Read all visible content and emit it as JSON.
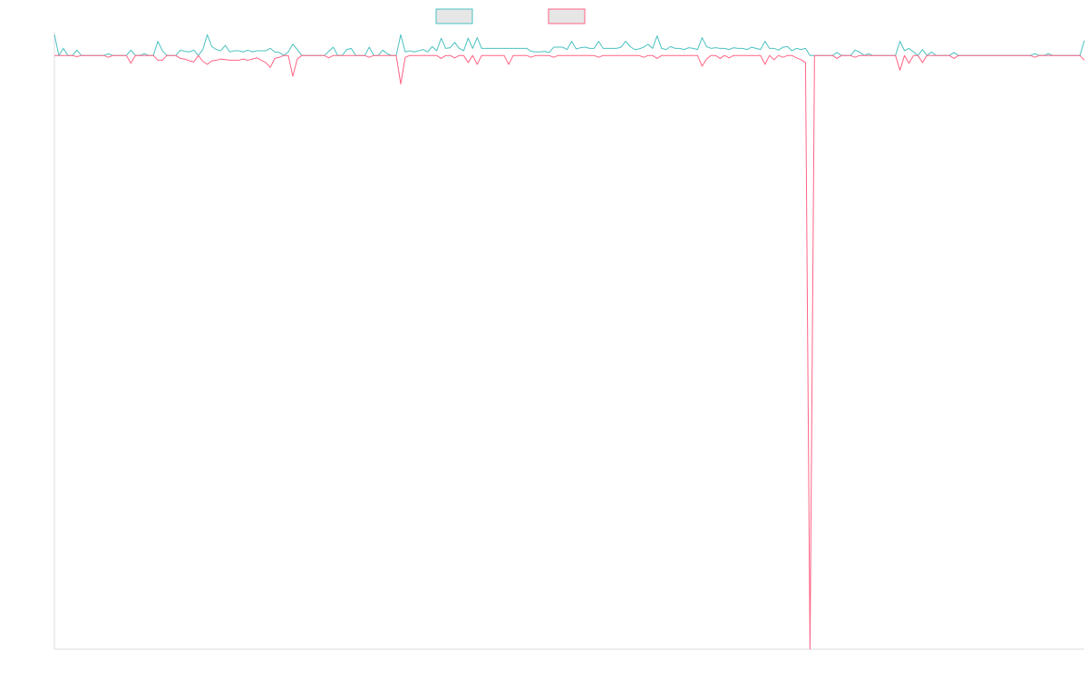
{
  "chart_data": {
    "type": "line",
    "title": "",
    "xlabel": "",
    "ylabel": "",
    "grid": false,
    "legend_position": "top-center",
    "ylim": [
      -100,
      4
    ],
    "x_count": 230,
    "baseline": 0,
    "series": [
      {
        "name": "",
        "color": "#4bc0c0",
        "legend_fill": "#e6e6e6",
        "spikes": [
          [
            0,
            3.5
          ],
          [
            2,
            1.2
          ],
          [
            5,
            0.9
          ],
          [
            12,
            0.3
          ],
          [
            17,
            0.9
          ],
          [
            20,
            0.3
          ],
          [
            23,
            2.4
          ],
          [
            24,
            0.8
          ],
          [
            28,
            0.9
          ],
          [
            29,
            0.7
          ],
          [
            30,
            0.6
          ],
          [
            31,
            0.9
          ],
          [
            33,
            1.0
          ],
          [
            34,
            3.5
          ],
          [
            35,
            1.5
          ],
          [
            36,
            1.0
          ],
          [
            37,
            0.8
          ],
          [
            38,
            1.7
          ],
          [
            39,
            0.6
          ],
          [
            40,
            0.8
          ],
          [
            41,
            0.8
          ],
          [
            42,
            0.6
          ],
          [
            43,
            0.9
          ],
          [
            44,
            0.6
          ],
          [
            45,
            0.8
          ],
          [
            46,
            0.8
          ],
          [
            47,
            0.8
          ],
          [
            48,
            1.2
          ],
          [
            49,
            0.6
          ],
          [
            50,
            0.5
          ],
          [
            52,
            0.6
          ],
          [
            53,
            1.9
          ],
          [
            54,
            1.0
          ],
          [
            61,
            0.7
          ],
          [
            62,
            1.4
          ],
          [
            65,
            1.0
          ],
          [
            66,
            1.2
          ],
          [
            70,
            1.4
          ],
          [
            73,
            0.9
          ],
          [
            74,
            0.3
          ],
          [
            77,
            3.5
          ],
          [
            78,
            0.6
          ],
          [
            79,
            0.8
          ],
          [
            80,
            0.6
          ],
          [
            81,
            0.8
          ],
          [
            82,
            1.0
          ],
          [
            83,
            0.6
          ],
          [
            84,
            1.5
          ],
          [
            85,
            0.8
          ],
          [
            86,
            2.9
          ],
          [
            87,
            1.2
          ],
          [
            88,
            1.3
          ],
          [
            89,
            2.2
          ],
          [
            90,
            1.2
          ],
          [
            91,
            0.8
          ],
          [
            92,
            2.9
          ],
          [
            93,
            1.2
          ],
          [
            94,
            3.0
          ],
          [
            95,
            1.2
          ],
          [
            96,
            1.2
          ],
          [
            97,
            1.2
          ],
          [
            98,
            1.2
          ],
          [
            99,
            1.2
          ],
          [
            100,
            1.2
          ],
          [
            101,
            1.2
          ],
          [
            102,
            1.2
          ],
          [
            103,
            1.2
          ],
          [
            104,
            1.2
          ],
          [
            105,
            1.2
          ],
          [
            106,
            0.7
          ],
          [
            107,
            0.6
          ],
          [
            108,
            0.6
          ],
          [
            109,
            0.7
          ],
          [
            110,
            0.5
          ],
          [
            111,
            1.4
          ],
          [
            112,
            1.4
          ],
          [
            113,
            1.4
          ],
          [
            114,
            1.0
          ],
          [
            115,
            2.4
          ],
          [
            116,
            1.1
          ],
          [
            117,
            1.3
          ],
          [
            118,
            1.4
          ],
          [
            119,
            1.2
          ],
          [
            120,
            1.2
          ],
          [
            121,
            2.4
          ],
          [
            122,
            1.2
          ],
          [
            123,
            1.2
          ],
          [
            124,
            1.2
          ],
          [
            125,
            1.2
          ],
          [
            126,
            1.4
          ],
          [
            127,
            2.4
          ],
          [
            128,
            1.5
          ],
          [
            129,
            1.0
          ],
          [
            130,
            1.1
          ],
          [
            131,
            1.4
          ],
          [
            132,
            1.9
          ],
          [
            133,
            1.2
          ],
          [
            134,
            3.3
          ],
          [
            135,
            1.2
          ],
          [
            136,
            1.0
          ],
          [
            137,
            1.5
          ],
          [
            138,
            1.2
          ],
          [
            139,
            1.2
          ],
          [
            140,
            1.0
          ],
          [
            141,
            1.3
          ],
          [
            142,
            1.2
          ],
          [
            143,
            1.0
          ],
          [
            144,
            3.0
          ],
          [
            145,
            1.5
          ],
          [
            146,
            1.2
          ],
          [
            147,
            1.3
          ],
          [
            148,
            1.2
          ],
          [
            149,
            1.2
          ],
          [
            150,
            1.0
          ],
          [
            151,
            1.3
          ],
          [
            152,
            1.2
          ],
          [
            153,
            1.2
          ],
          [
            154,
            1.0
          ],
          [
            155,
            1.4
          ],
          [
            156,
            1.2
          ],
          [
            157,
            1.0
          ],
          [
            158,
            2.4
          ],
          [
            159,
            1.2
          ],
          [
            160,
            1.2
          ],
          [
            161,
            0.9
          ],
          [
            162,
            1.4
          ],
          [
            163,
            1.5
          ],
          [
            164,
            0.8
          ],
          [
            165,
            1.2
          ],
          [
            166,
            1.0
          ],
          [
            167,
            1.2
          ],
          [
            174,
            0.5
          ],
          [
            178,
            0.9
          ],
          [
            179,
            0.6
          ],
          [
            181,
            0.3
          ],
          [
            188,
            2.4
          ],
          [
            189,
            0.8
          ],
          [
            190,
            1.2
          ],
          [
            191,
            0.6
          ],
          [
            193,
            1.0
          ],
          [
            195,
            0.6
          ],
          [
            200,
            0.5
          ],
          [
            218,
            0.3
          ],
          [
            221,
            0.3
          ],
          [
            229,
            2.5
          ]
        ]
      },
      {
        "name": "",
        "color": "#ff6384",
        "legend_fill": "#e6e6e6",
        "spikes": [
          [
            5,
            -0.2
          ],
          [
            12,
            -0.3
          ],
          [
            17,
            -1.3
          ],
          [
            23,
            -0.8
          ],
          [
            24,
            -0.8
          ],
          [
            28,
            -0.5
          ],
          [
            29,
            -0.6
          ],
          [
            30,
            -0.9
          ],
          [
            31,
            -1.1
          ],
          [
            33,
            -1.0
          ],
          [
            34,
            -1.5
          ],
          [
            35,
            -0.9
          ],
          [
            36,
            -0.8
          ],
          [
            37,
            -0.6
          ],
          [
            38,
            -0.7
          ],
          [
            39,
            -0.8
          ],
          [
            40,
            -0.8
          ],
          [
            41,
            -0.8
          ],
          [
            42,
            -0.6
          ],
          [
            43,
            -0.8
          ],
          [
            44,
            -0.6
          ],
          [
            45,
            -0.4
          ],
          [
            46,
            -0.8
          ],
          [
            47,
            -1.2
          ],
          [
            48,
            -2.0
          ],
          [
            49,
            -0.5
          ],
          [
            50,
            -0.3
          ],
          [
            53,
            -3.5
          ],
          [
            54,
            -0.6
          ],
          [
            61,
            -0.4
          ],
          [
            70,
            -0.3
          ],
          [
            77,
            -4.8
          ],
          [
            78,
            -0.3
          ],
          [
            86,
            -0.5
          ],
          [
            89,
            -0.4
          ],
          [
            92,
            -1.2
          ],
          [
            94,
            -1.5
          ],
          [
            101,
            -1.5
          ],
          [
            106,
            -0.3
          ],
          [
            111,
            -0.3
          ],
          [
            121,
            -0.3
          ],
          [
            131,
            -0.3
          ],
          [
            134,
            -0.5
          ],
          [
            144,
            -1.8
          ],
          [
            145,
            -0.6
          ],
          [
            148,
            -0.5
          ],
          [
            150,
            -0.4
          ],
          [
            158,
            -1.5
          ],
          [
            160,
            -0.7
          ],
          [
            162,
            -0.3
          ],
          [
            165,
            -0.4
          ],
          [
            166,
            -0.7
          ],
          [
            167,
            -1.2
          ],
          [
            168,
            -100
          ],
          [
            174,
            -0.5
          ],
          [
            178,
            -0.3
          ],
          [
            188,
            -2.5
          ],
          [
            190,
            -1.3
          ],
          [
            193,
            -1.2
          ],
          [
            200,
            -0.5
          ],
          [
            218,
            -0.3
          ],
          [
            229,
            -0.8
          ]
        ]
      }
    ]
  }
}
